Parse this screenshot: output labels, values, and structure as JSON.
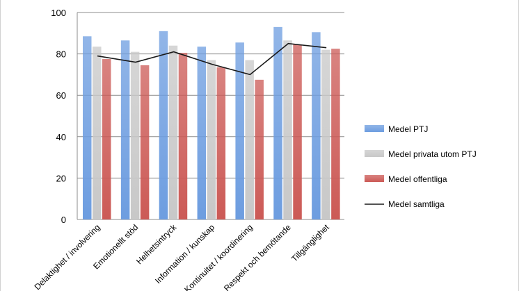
{
  "chart_data": {
    "type": "bar",
    "categories": [
      "Delaktighet / involvering",
      "Emotionellt stöd",
      "Helhetsintryck",
      "Information / kunskap",
      "Kontinuitet / koordinering",
      "Respekt och bemötande",
      "Tillgänglighet"
    ],
    "series": [
      {
        "name": "Medel PTJ",
        "kind": "bar",
        "color": "#6d9de0",
        "values": [
          88.5,
          86.5,
          91,
          83.5,
          85.5,
          93,
          90.5
        ]
      },
      {
        "name": "Medel privata utom PTJ",
        "kind": "bar",
        "color": "#c8c8c8",
        "values": [
          83.5,
          81,
          84,
          77,
          77,
          86.5,
          82
        ]
      },
      {
        "name": "Medel offentliga",
        "kind": "bar",
        "color": "#cc5a56",
        "values": [
          77.5,
          74.5,
          80.5,
          73.5,
          67.5,
          84.5,
          82.5
        ]
      },
      {
        "name": "Medel samtliga",
        "kind": "line",
        "color": "#1a1a1a",
        "values": [
          79,
          76,
          81,
          75,
          70,
          85,
          83
        ]
      }
    ],
    "ylim": [
      0,
      100
    ],
    "yticks": [
      0,
      20,
      40,
      60,
      80,
      100
    ],
    "grid": true,
    "legend": "right"
  }
}
